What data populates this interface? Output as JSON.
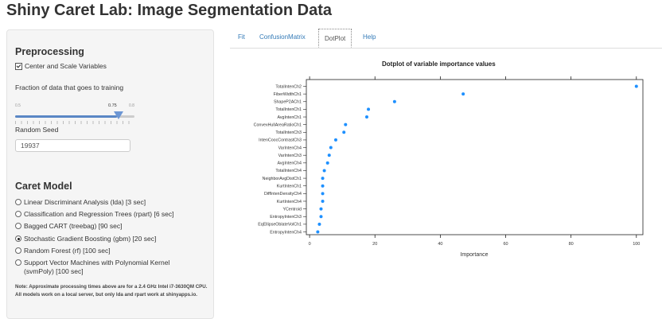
{
  "title": "Shiny Caret Lab: Image Segmentation Data",
  "preprocessing": {
    "heading": "Preprocessing",
    "center_scale_label": "Center and Scale Variables",
    "fraction_label": "Fraction of data that goes to training",
    "slider": {
      "min_label": "0.5",
      "value_label": "0.75",
      "max_label": "0.8",
      "value": 0.75
    },
    "seed_label": "Random Seed",
    "seed_value": "19937"
  },
  "caret_model": {
    "heading": "Caret Model",
    "options": [
      {
        "label": "Linear Discriminant Analysis (lda) [3 sec]",
        "selected": false
      },
      {
        "label": "Classification and Regression Trees (rpart) [6 sec]",
        "selected": false
      },
      {
        "label": "Bagged CART (treebag) [90 sec]",
        "selected": false
      },
      {
        "label": "Stochastic Gradient Boosting (gbm) [20 sec]",
        "selected": true
      },
      {
        "label": "Random Forest (rf) [100 sec]",
        "selected": false
      },
      {
        "label": "Support Vector Machines with Polynomial Kernel (svmPoly) [100 sec]",
        "selected": false
      }
    ],
    "note": "Note: Approximate processing times above are for a 2.4 GHz Intel i7-3630QM CPU. All models work on a local server, but only lda and rpart work at shinyapps.io."
  },
  "tabs": [
    {
      "label": "Fit",
      "active": false
    },
    {
      "label": "ConfusionMatrix",
      "active": false
    },
    {
      "label": "DotPlot",
      "active": true
    },
    {
      "label": "Help",
      "active": false
    }
  ],
  "chart_data": {
    "type": "scatter",
    "title": "Dotplot of variable importance values",
    "xlabel": "Importance",
    "ylabel": "",
    "xlim": [
      -1,
      102
    ],
    "xticks": [
      0,
      20,
      40,
      60,
      80,
      100
    ],
    "grid": false,
    "point_color": "#1e90ff",
    "categories": [
      "TotalIntenCh2",
      "FiberWidthCh1",
      "ShapeP2ACh1",
      "TotalIntenCh1",
      "AvgIntenCh1",
      "ConvexHullAreaRatioCh1",
      "TotalIntenCh3",
      "IntenCoocContrastCh3",
      "VarIntenCh4",
      "VarIntenCh3",
      "AvgIntenCh4",
      "TotalIntenCh4",
      "NeighborAvgDistCh1",
      "KurtIntenCh1",
      "DiffIntenDensityCh4",
      "KurtIntenCh4",
      "YCentroid",
      "EntropyIntenCh3",
      "EqEllipseOblateVolCh1",
      "EntropyIntenCh4"
    ],
    "values": [
      100,
      47,
      26,
      18,
      17.5,
      11,
      10.5,
      8,
      6.5,
      6,
      5.5,
      4.5,
      4,
      4,
      4,
      4,
      3.5,
      3.5,
      3,
      2.5
    ]
  }
}
